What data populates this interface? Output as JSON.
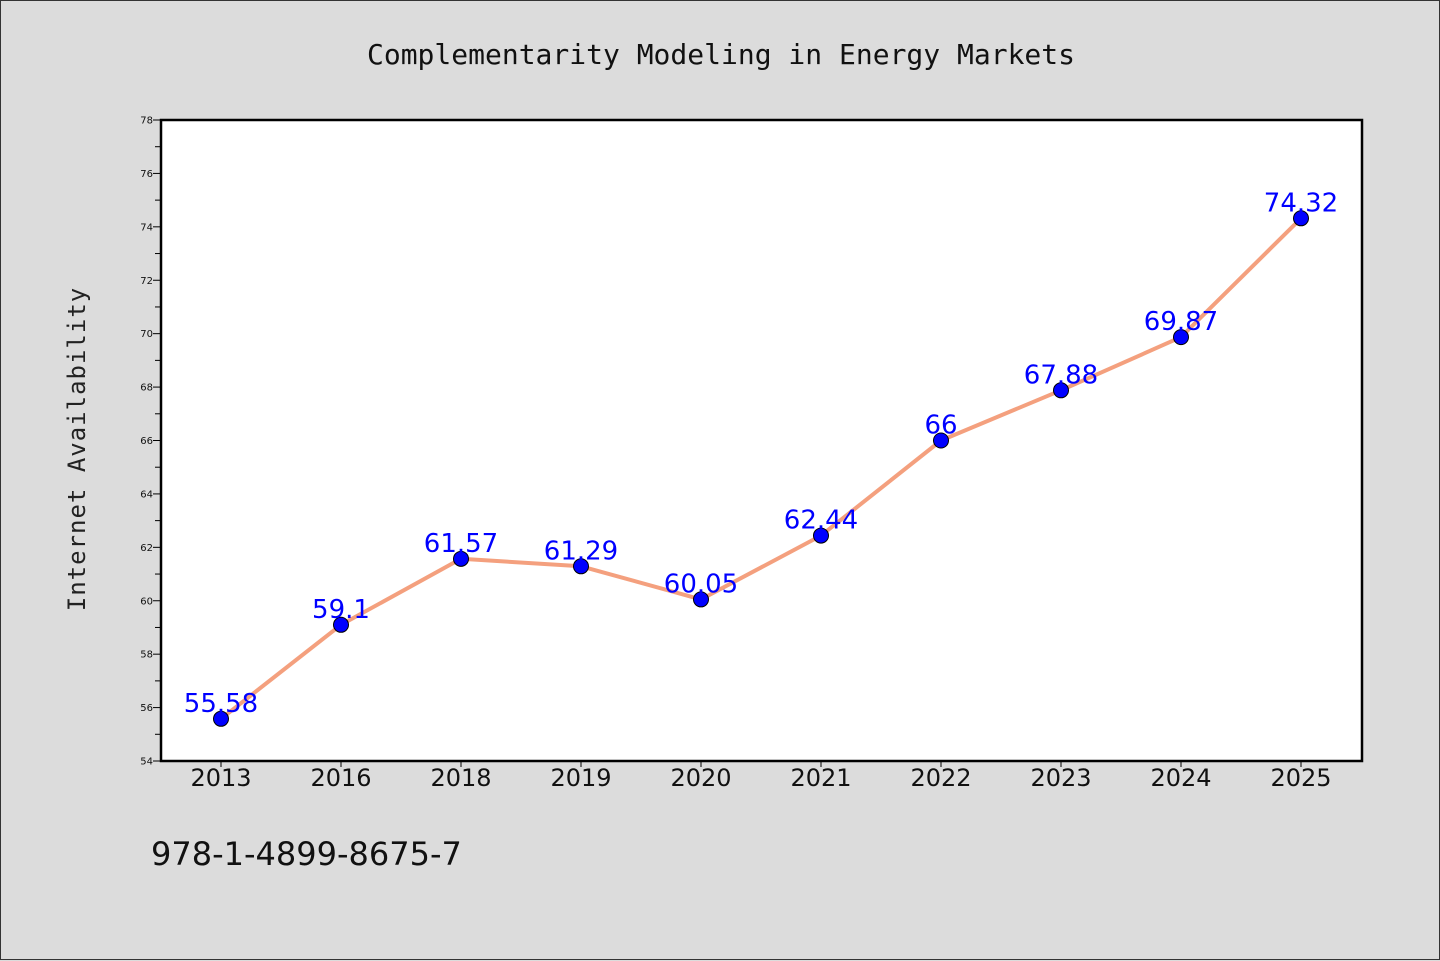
{
  "chart_data": {
    "type": "line",
    "title": "Complementarity Modeling in Energy Markets",
    "xlabel": "",
    "ylabel": "Internet Availability",
    "categories": [
      "2013",
      "2016",
      "2018",
      "2019",
      "2020",
      "2021",
      "2022",
      "2023",
      "2024",
      "2025"
    ],
    "series": [
      {
        "values": [
          55.58,
          59.1,
          61.57,
          61.29,
          60.05,
          62.44,
          66,
          67.88,
          69.87,
          74.32
        ],
        "data_labels": [
          "55.58",
          "59.1",
          "61.57",
          "61.29",
          "60.05",
          "62.44",
          "66",
          "67.88",
          "69.87",
          "74.32"
        ]
      }
    ],
    "ylim": [
      54,
      78
    ],
    "yticks": [
      54,
      56,
      58,
      60,
      62,
      64,
      66,
      68,
      70,
      72,
      74,
      76,
      78
    ],
    "grid": false,
    "legend": "none",
    "colors": {
      "line": "#f4a07e",
      "marker": "#0000ff",
      "data_label": "#0000ff",
      "plot_background": "#ffffff",
      "figure_background": "#dcdcdc"
    }
  },
  "footer": {
    "isbn": "978-1-4899-8675-7"
  }
}
